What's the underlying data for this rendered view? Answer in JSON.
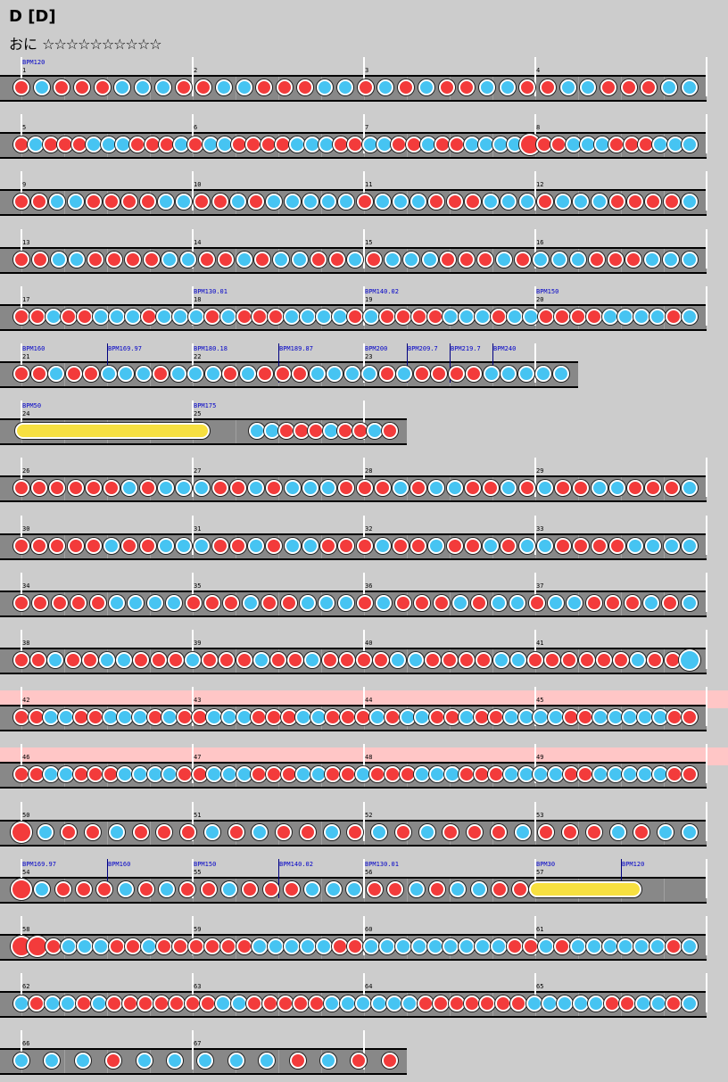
{
  "title": "D [D]",
  "difficulty_label": "おに",
  "stars": "☆☆☆☆☆☆☆☆☆☆",
  "colors": {
    "don": "#f33b3b",
    "ka": "#46c4f2",
    "roll": "#f7e040",
    "lane": "#888888",
    "highlight": "#ffc6c6"
  },
  "rows": [
    {
      "measures": [
        "1",
        "2",
        "3",
        "4"
      ],
      "bpm": [
        {
          "text": "BPM120",
          "beat": 0
        }
      ],
      "notes": "d,k,d,d,d,k,k,k,d,d,k,k,d,d,d,k,k,d,k,d,k,d,d,k,k,d,d,k,k,d,d,d,k,k"
    },
    {
      "measures": [
        "5",
        "6",
        "7",
        "8"
      ],
      "bpm": [],
      "notes": "d,k,d,d,d,k,k,k,d,d,d,k,d,k,k,d,d,d,d,k,k,k,d,d,k,k,d,d,k,d,d,k,k,k,k,D,d,d,k,k,k,d,d,d,k,k,k"
    },
    {
      "measures": [
        "9",
        "10",
        "11",
        "12"
      ],
      "bpm": [],
      "notes": "d,d,k,k,d,d,d,d,k,k,d,d,k,d,k,k,k,k,k,d,k,k,k,d,d,d,k,k,k,d,k,k,k,d,d,d,d,k"
    },
    {
      "measures": [
        "13",
        "14",
        "15",
        "16"
      ],
      "bpm": [],
      "notes": "d,d,k,k,d,d,d,d,k,k,d,d,k,d,k,k,d,d,k,d,k,k,k,d,d,d,k,d,k,k,k,d,d,d,k,k,k"
    },
    {
      "measures": [
        "17",
        "18",
        "19",
        "20"
      ],
      "bpm": [
        {
          "text": "BPM130.01",
          "beat": 4
        },
        {
          "text": "BPM140.02",
          "beat": 8
        },
        {
          "text": "BPM150",
          "beat": 12
        }
      ],
      "notes": "d,d,k,d,d,k,k,k,d,k,k,k,d,k,d,d,d,k,k,k,k,d,k,d,d,d,d,k,k,k,d,k,k,d,d,d,d,k,k,k,k,d,k"
    },
    {
      "measures": [
        "21",
        "22",
        "23"
      ],
      "bpm": [
        {
          "text": "BPM160",
          "beat": 0
        },
        {
          "text": "BPM169.97",
          "beat": 2,
          "line": true
        },
        {
          "text": "BPM180.18",
          "beat": 4
        },
        {
          "text": "BPM189.87",
          "beat": 6,
          "line": true
        },
        {
          "text": "BPM200",
          "beat": 8
        },
        {
          "text": "BPM209.7",
          "beat": 9,
          "line": true
        },
        {
          "text": "BPM219.7",
          "beat": 10,
          "line": true
        },
        {
          "text": "BPM240",
          "beat": 11,
          "line": true
        }
      ],
      "notes": "d,d,k,d,d,k,k,k,d,k,k,k,d,k,d,d,d,k,k,k,k,d,k,d,d,d,d,k,k,k,k,k",
      "width_beats": 13
    },
    {
      "measures": [
        "24",
        "25"
      ],
      "bpm": [
        {
          "text": "BPM50",
          "beat": 0
        },
        {
          "text": "BPM175",
          "beat": 4
        }
      ],
      "roll": [
        0.05,
        4.2
      ],
      "notes_offset": 5.5,
      "notes": "k,k,d,d,d,k,d,d,k,d",
      "width_beats": 9
    },
    {
      "measures": [
        "26",
        "27",
        "28",
        "29"
      ],
      "bpm": [],
      "notes": "d,d,d,d,d,d,k,d,k,k,k,d,d,k,d,k,k,k,d,d,d,k,d,k,k,d,d,k,d,k,d,d,k,k,d,d,d,k"
    },
    {
      "measures": [
        "30",
        "31",
        "32",
        "33"
      ],
      "bpm": [],
      "notes": "d,d,d,d,d,k,d,d,k,k,k,d,d,k,d,k,k,d,d,d,k,d,d,k,d,d,k,d,k,k,d,d,d,d,k,k,k,k"
    },
    {
      "measures": [
        "34",
        "35",
        "36",
        "37"
      ],
      "bpm": [],
      "notes": "d,d,d,d,d,k,k,k,k,d,d,d,k,d,d,k,k,k,d,k,d,d,d,k,d,k,k,d,k,k,d,d,d,k,d,k"
    },
    {
      "measures": [
        "38",
        "39",
        "40",
        "41"
      ],
      "bpm": [],
      "notes": "d,d,k,d,d,k,k,d,d,d,k,d,d,d,k,d,d,k,d,d,d,d,k,k,d,d,d,d,k,k,d,d,d,d,d,d,k,d,d,K"
    },
    {
      "measures": [
        "42",
        "43",
        "44",
        "45"
      ],
      "bpm": [],
      "highlight": true,
      "notes": "d,d,k,k,d,d,k,k,k,d,k,d,d,k,k,k,d,d,d,k,k,d,d,d,k,d,k,k,d,d,k,d,d,k,k,k,k,d,d,k,k,k,k,k,d,d"
    },
    {
      "measures": [
        "46",
        "47",
        "48",
        "49"
      ],
      "bpm": [],
      "highlight": true,
      "notes": "d,d,k,k,d,d,d,k,k,k,k,d,d,k,k,k,d,d,d,k,k,d,d,k,d,d,d,k,k,k,d,d,d,k,k,k,k,d,d,k,k,k,k,k,d,d"
    },
    {
      "measures": [
        "50",
        "51",
        "52",
        "53"
      ],
      "bpm": [],
      "notes": "D,k,d,d,k,d,d,d,k,d,k,d,d,k,d,k,d,k,d,d,d,k,d,d,d,k,d,k,k"
    },
    {
      "measures": [
        "54",
        "55",
        "56",
        "57"
      ],
      "bpm": [
        {
          "text": "BPM169.97",
          "beat": 0
        },
        {
          "text": "BPM160",
          "beat": 2,
          "line": true
        },
        {
          "text": "BPM150",
          "beat": 4
        },
        {
          "text": "BPM140.02",
          "beat": 6,
          "line": true
        },
        {
          "text": "BPM130.01",
          "beat": 8
        },
        {
          "text": "BPM30",
          "beat": 12
        },
        {
          "text": "BPM120",
          "beat": 14,
          "line": true
        }
      ],
      "roll": [
        12.05,
        14.3
      ],
      "notes": "D,k,d,d,d,k,d,k,d,d,k,d,d,d,k,k,k,d,d,k,d,k,k,d,d"
    },
    {
      "measures": [
        "58",
        "59",
        "60",
        "61"
      ],
      "bpm": [],
      "notes": "D,D,d,k,k,k,d,d,k,d,d,d,d,d,d,k,k,k,k,k,d,d,k,k,k,k,k,k,k,k,k,d,d,k,d,k,k,k,k,k,k,d,k"
    },
    {
      "measures": [
        "62",
        "63",
        "64",
        "65"
      ],
      "bpm": [],
      "notes": "k,d,k,k,d,k,d,d,d,d,d,d,d,k,k,d,d,d,d,d,k,k,k,k,k,k,d,d,d,d,d,d,d,k,k,k,k,k,d,d,k,k,d,k"
    },
    {
      "measures": [
        "66",
        "67"
      ],
      "bpm": [],
      "notes": "k,k,k,d,k,k,k,k,k,d,k,d,d",
      "width_beats": 9
    }
  ]
}
